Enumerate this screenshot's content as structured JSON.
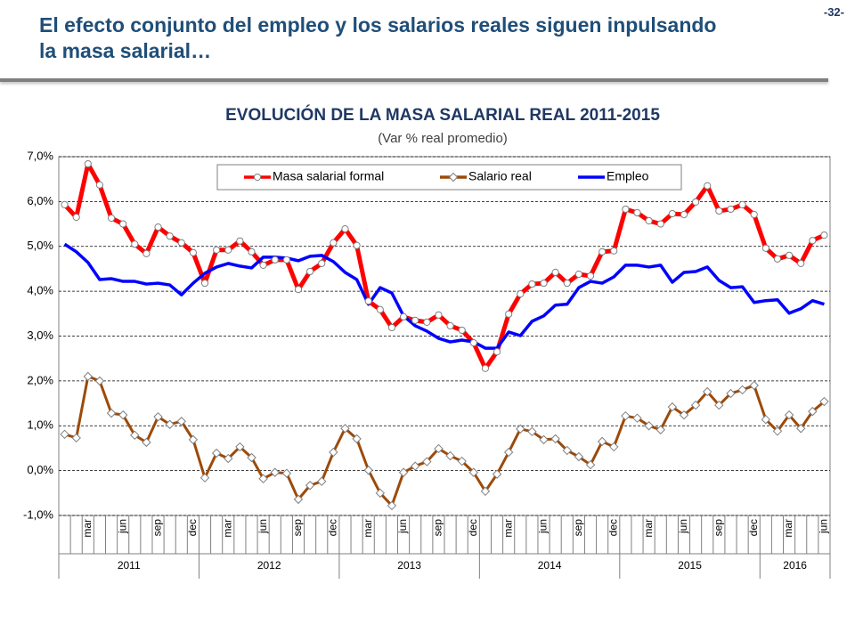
{
  "header": {
    "title": "El efecto conjunto del empleo y los salarios reales siguen inpulsando la masa salarial…",
    "page": "-32-"
  },
  "chart_data": {
    "type": "line",
    "title": "EVOLUCIÓN DE LA MASA SALARIAL REAL 2011-2015",
    "subtitle": "(Var % real promedio)",
    "categories": [
      null,
      null,
      "mar",
      null,
      null,
      "jun",
      null,
      null,
      "sep",
      null,
      null,
      "dec",
      null,
      null,
      "mar",
      null,
      null,
      "jun",
      null,
      null,
      "sep",
      null,
      null,
      "dec",
      null,
      null,
      "mar",
      null,
      null,
      "jun",
      null,
      null,
      "sep",
      null,
      null,
      "dec",
      null,
      null,
      "mar",
      null,
      null,
      "jun",
      null,
      null,
      "sep",
      null,
      null,
      "dec",
      null,
      null,
      "mar",
      null,
      null,
      "jun",
      null,
      null,
      "sep",
      null,
      null,
      "dec",
      null,
      null,
      "mar",
      null,
      null,
      "jun"
    ],
    "years": [
      "2011",
      "2012",
      "2013",
      "2014",
      "2015",
      "2016"
    ],
    "ylim": [
      -1,
      7
    ],
    "yticks": [
      {
        "value": -1,
        "label": "-1,0%"
      },
      {
        "value": 0,
        "label": "0,0%"
      },
      {
        "value": 1,
        "label": "1,0%"
      },
      {
        "value": 2,
        "label": "2,0%"
      },
      {
        "value": 3,
        "label": "3,0%"
      },
      {
        "value": 4,
        "label": "4,0%"
      },
      {
        "value": 5,
        "label": "5,0%"
      },
      {
        "value": 6,
        "label": "6,0%"
      },
      {
        "value": 7,
        "label": "7,0%"
      }
    ],
    "grid": true,
    "legend": "top",
    "series": [
      {
        "name": "Masa salarial formal",
        "color": "#ff0000",
        "marker": "circle",
        "values": [
          5.93,
          5.65,
          6.84,
          6.37,
          5.63,
          5.5,
          5.05,
          4.84,
          5.43,
          5.23,
          5.08,
          4.86,
          4.18,
          4.92,
          4.92,
          5.12,
          4.88,
          4.58,
          4.7,
          4.7,
          4.04,
          4.44,
          4.62,
          5.08,
          5.39,
          5.02,
          3.78,
          3.59,
          3.19,
          3.43,
          3.35,
          3.31,
          3.47,
          3.23,
          3.13,
          2.85,
          2.28,
          2.65,
          3.49,
          3.94,
          4.16,
          4.18,
          4.42,
          4.18,
          4.38,
          4.34,
          4.88,
          4.9,
          5.83,
          5.75,
          5.57,
          5.5,
          5.73,
          5.71,
          5.99,
          6.35,
          5.79,
          5.83,
          5.93,
          5.71,
          4.96,
          4.72,
          4.8,
          4.62,
          5.13,
          5.25
        ]
      },
      {
        "name": "Salario real",
        "color": "#9c4a0a",
        "marker": "diamond",
        "values": [
          0.81,
          0.73,
          2.1,
          2.0,
          1.28,
          1.24,
          0.79,
          0.63,
          1.2,
          1.03,
          1.1,
          0.69,
          -0.16,
          0.39,
          0.27,
          0.53,
          0.29,
          -0.18,
          -0.04,
          -0.06,
          -0.64,
          -0.33,
          -0.24,
          0.41,
          0.94,
          0.71,
          0.01,
          -0.5,
          -0.78,
          -0.04,
          0.1,
          0.2,
          0.49,
          0.33,
          0.21,
          -0.04,
          -0.46,
          -0.08,
          0.41,
          0.93,
          0.87,
          0.69,
          0.71,
          0.45,
          0.31,
          0.13,
          0.65,
          0.53,
          1.22,
          1.17,
          1.0,
          0.91,
          1.42,
          1.24,
          1.46,
          1.76,
          1.46,
          1.72,
          1.8,
          1.9,
          1.14,
          0.88,
          1.24,
          0.94,
          1.32,
          1.54
        ]
      },
      {
        "name": "Empleo",
        "color": "#0000ff",
        "values": [
          5.05,
          4.88,
          4.64,
          4.26,
          4.28,
          4.22,
          4.22,
          4.16,
          4.18,
          4.14,
          3.92,
          4.18,
          4.4,
          4.54,
          4.62,
          4.56,
          4.52,
          4.76,
          4.76,
          4.74,
          4.68,
          4.78,
          4.8,
          4.66,
          4.42,
          4.26,
          3.71,
          4.08,
          3.96,
          3.45,
          3.23,
          3.11,
          2.95,
          2.87,
          2.91,
          2.87,
          2.73,
          2.73,
          3.09,
          3.01,
          3.33,
          3.45,
          3.69,
          3.71,
          4.08,
          4.22,
          4.18,
          4.32,
          4.58,
          4.58,
          4.54,
          4.58,
          4.2,
          4.42,
          4.44,
          4.54,
          4.24,
          4.08,
          4.1,
          3.75,
          3.79,
          3.81,
          3.51,
          3.61,
          3.79,
          3.71
        ]
      }
    ]
  }
}
